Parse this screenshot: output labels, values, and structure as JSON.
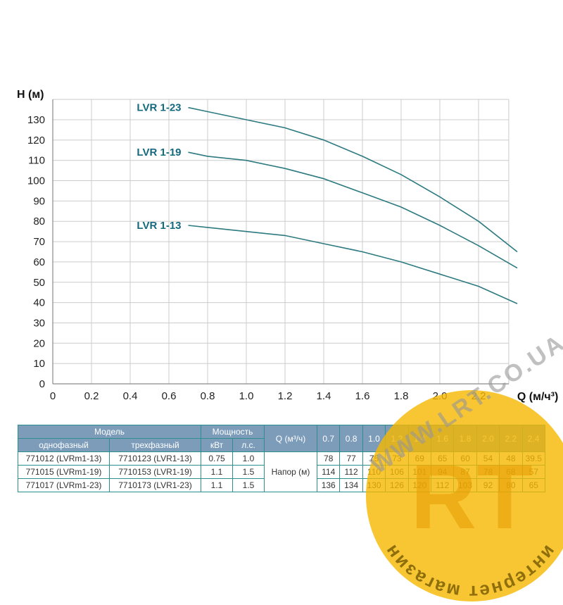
{
  "chart_data": {
    "type": "line",
    "title": "",
    "ylabel": "H (м)",
    "xlabel": "Q (м/ч³)",
    "x": [
      0.7,
      0.8,
      1.0,
      1.2,
      1.4,
      1.6,
      1.8,
      2.0,
      2.2,
      2.4
    ],
    "series": [
      {
        "name": "LVR 1-23",
        "values": [
          136,
          134,
          130,
          126,
          120,
          112,
          103,
          92,
          80,
          65
        ]
      },
      {
        "name": "LVR 1-19",
        "values": [
          114,
          112,
          110,
          106,
          101,
          94,
          87,
          78,
          68,
          57
        ]
      },
      {
        "name": "LVR 1-13",
        "values": [
          78,
          77,
          75,
          73,
          69,
          65,
          60,
          54,
          48,
          39.5
        ]
      }
    ],
    "xlim": [
      0,
      2.36
    ],
    "ylim": [
      0,
      140
    ],
    "xticks": [
      "0",
      "0.2",
      "0.4",
      "0.6",
      "0.8",
      "1.0",
      "1.2",
      "1.4",
      "1.6",
      "1.8",
      "2.0",
      "2.2"
    ],
    "yticks": [
      "0",
      "10",
      "20",
      "30",
      "40",
      "50",
      "60",
      "70",
      "80",
      "90",
      "100",
      "110",
      "120",
      "130"
    ],
    "grid": true,
    "legend_position": "inline-curve-labels"
  },
  "colors": {
    "curve": "#2d7a80",
    "curve_label": "#15697e",
    "grid": "#cccccc",
    "axis": "#8a8a8a",
    "table_header_bg": "#7c9cba",
    "table_border": "#2e8f8f",
    "watermark_yellow": "#f6b800",
    "watermark_gray": "#9a9a9a"
  },
  "table": {
    "header": {
      "model": "Модель",
      "single_phase": "однофазный",
      "three_phase": "трехфазный",
      "power": "Мощность",
      "kw": "кВт",
      "hp": "л.с.",
      "q_label": "Q (м³/ч)",
      "q_values": [
        "0.7",
        "0.8",
        "1.0",
        "1.2",
        "1.4",
        "1.6",
        "1.8",
        "2.0",
        "2.2",
        "2.4"
      ]
    },
    "napor_label": "Напор (м)",
    "rows": [
      {
        "single_phase": "771012 (LVRm1-13)",
        "three_phase": "7710123 (LVR1-13)",
        "kw": "0.75",
        "hp": "1.0",
        "values": [
          "78",
          "77",
          "75",
          "73",
          "69",
          "65",
          "60",
          "54",
          "48",
          "39.5"
        ]
      },
      {
        "single_phase": "771015 (LVRm1-19)",
        "three_phase": "7710153 (LVR1-19)",
        "kw": "1.1",
        "hp": "1.5",
        "values": [
          "114",
          "112",
          "110",
          "106",
          "101",
          "94",
          "87",
          "78",
          "68",
          "57"
        ]
      },
      {
        "single_phase": "771017 (LVRm1-23)",
        "three_phase": "7710173 (LVR1-23)",
        "kw": "1.1",
        "hp": "1.5",
        "values": [
          "136",
          "134",
          "130",
          "126",
          "120",
          "112",
          "103",
          "92",
          "80",
          "65"
        ]
      }
    ]
  },
  "watermark": {
    "site": "WWW.LRT.CO.UA",
    "logo_monogram": "RT",
    "logo_circle_text": "интернет магазин"
  }
}
